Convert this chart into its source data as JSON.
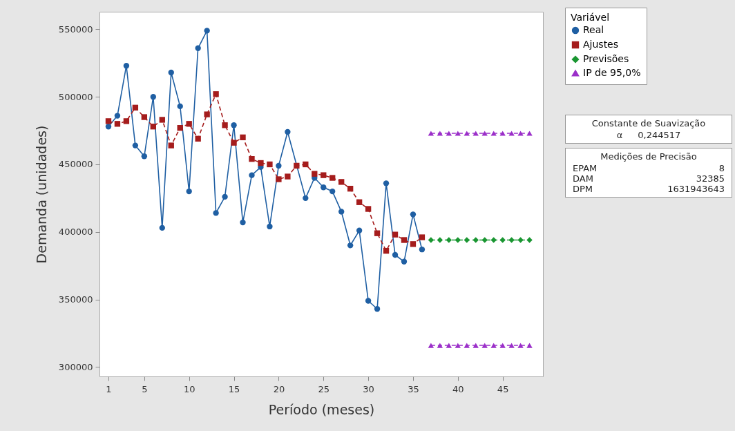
{
  "chart_data": {
    "type": "line",
    "xlabel": "Período (meses)",
    "ylabel": "Demanda (unidades)",
    "legend_title": "Variável",
    "xlim": [
      0,
      49.5
    ],
    "xticks": [
      1,
      5,
      10,
      15,
      20,
      25,
      30,
      35,
      40,
      45
    ],
    "ylim": [
      293000,
      563000
    ],
    "yticks": [
      300000,
      350000,
      400000,
      450000,
      500000,
      550000
    ],
    "grid": false,
    "legend": "right",
    "series": [
      {
        "name": "Real",
        "color": "#1f5fa3",
        "marker": "circle",
        "line_style": "solid",
        "x": [
          1,
          2,
          3,
          4,
          5,
          6,
          7,
          8,
          9,
          10,
          11,
          12,
          13,
          14,
          15,
          16,
          17,
          18,
          19,
          20,
          21,
          22,
          23,
          24,
          25,
          26,
          27,
          28,
          29,
          30,
          31,
          32,
          33,
          34,
          35,
          36
        ],
        "values": [
          478000,
          486000,
          523000,
          464000,
          456000,
          500000,
          403000,
          518000,
          493000,
          430000,
          536000,
          549000,
          414000,
          426000,
          479000,
          407000,
          442000,
          448000,
          404000,
          449000,
          474000,
          null,
          425000,
          440000,
          433000,
          430000,
          415000,
          390000,
          401000,
          349000,
          343000,
          436000,
          383000,
          378000,
          413000,
          387000
        ]
      },
      {
        "name": "Ajustes",
        "color": "#a51c1c",
        "marker": "square",
        "line_style": "dashed",
        "x": [
          1,
          2,
          3,
          4,
          5,
          6,
          7,
          8,
          9,
          10,
          11,
          12,
          13,
          14,
          15,
          16,
          17,
          18,
          19,
          20,
          21,
          22,
          23,
          24,
          25,
          26,
          27,
          28,
          29,
          30,
          31,
          32,
          33,
          34,
          35,
          36
        ],
        "values": [
          482000,
          480000,
          482000,
          492000,
          485000,
          478000,
          483000,
          464000,
          477000,
          480000,
          469000,
          487000,
          502000,
          479000,
          466000,
          470000,
          454000,
          451000,
          450000,
          439000,
          441000,
          449000,
          450000,
          443000,
          442000,
          440000,
          437000,
          432000,
          422000,
          417000,
          399000,
          386000,
          398000,
          394000,
          391000,
          396000
        ]
      },
      {
        "name": "Previsões",
        "color": "#1a9632",
        "marker": "diamond",
        "line_style": "dashed",
        "x": [
          37,
          38,
          39,
          40,
          41,
          42,
          43,
          44,
          45,
          46,
          47,
          48
        ],
        "values": [
          394000,
          394000,
          394000,
          394000,
          394000,
          394000,
          394000,
          394000,
          394000,
          394000,
          394000,
          394000
        ]
      },
      {
        "name": "IP de 95,0%",
        "color": "#9b2fc9",
        "marker": "triangle",
        "line_style": "dashed",
        "x": [
          37,
          38,
          39,
          40,
          41,
          42,
          43,
          44,
          45,
          46,
          47,
          48
        ],
        "values": [
          473000,
          473000,
          473000,
          473000,
          473000,
          473000,
          473000,
          473000,
          473000,
          473000,
          473000,
          473000
        ]
      },
      {
        "color": "#9b2fc9",
        "marker": "triangle",
        "line_style": "dashed",
        "x": [
          37,
          38,
          39,
          40,
          41,
          42,
          43,
          44,
          45,
          46,
          47,
          48
        ],
        "values": [
          316000,
          316000,
          316000,
          316000,
          316000,
          316000,
          316000,
          316000,
          316000,
          316000,
          316000,
          316000
        ]
      }
    ],
    "annotations": [
      "Constante de Suavização\nα\t0,244517",
      "Medições de Precisão\nEPAM\t8\nDAM\t32385\nDPM\t1631943643"
    ]
  }
}
